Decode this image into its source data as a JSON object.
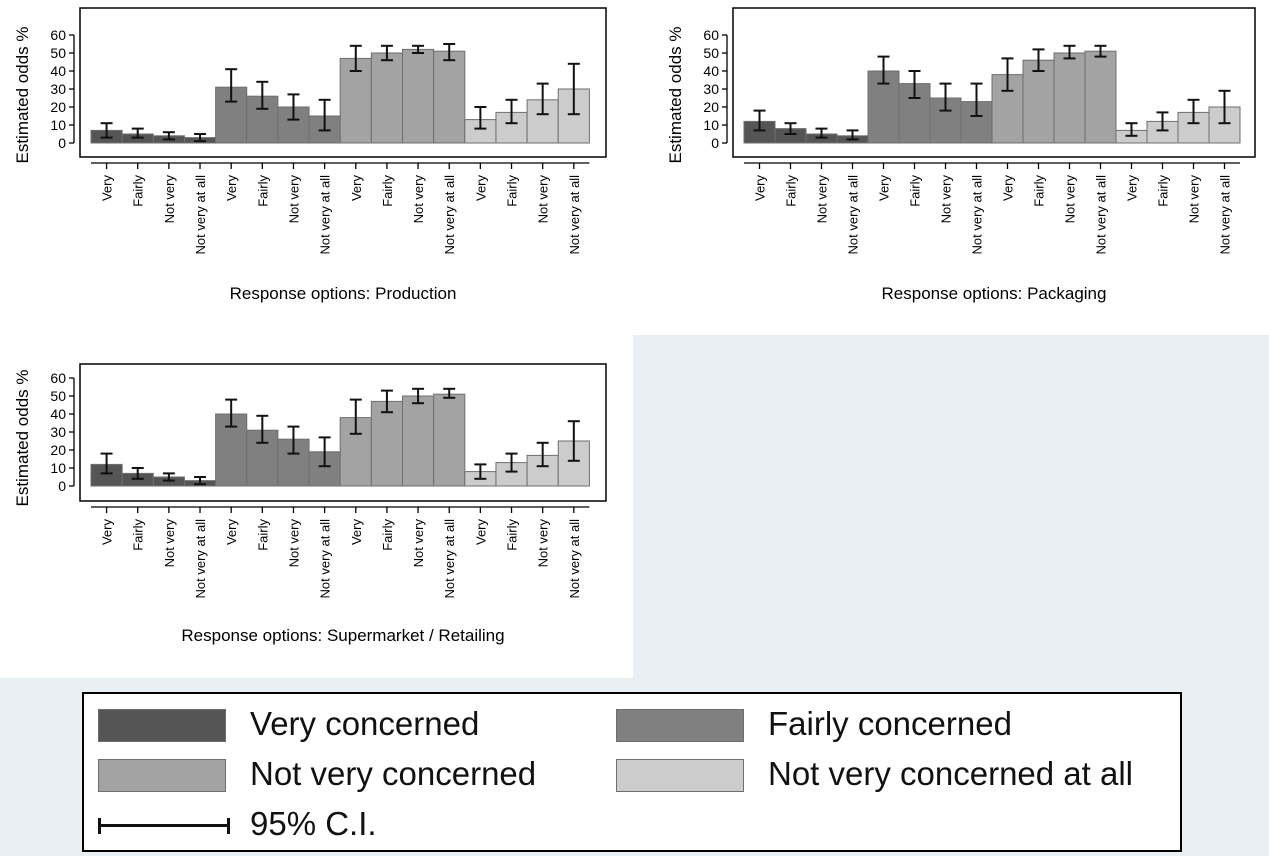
{
  "chart_data": [
    {
      "type": "bar",
      "xlabel": "Response options: Production",
      "ylabel": "Estimated odds %",
      "ylim": [
        0,
        60
      ],
      "yticks": [
        0,
        10,
        20,
        30,
        40,
        50,
        60
      ],
      "categories": [
        "Very",
        "Fairly",
        "Not very",
        "Not very at all"
      ],
      "series": [
        {
          "name": "Very concerned",
          "color": "#555555",
          "values": [
            7,
            5,
            4,
            3
          ],
          "ci_low": [
            3,
            3,
            2,
            1
          ],
          "ci_high": [
            11,
            8,
            6,
            5
          ]
        },
        {
          "name": "Fairly concerned",
          "color": "#808080",
          "values": [
            31,
            26,
            20,
            15
          ],
          "ci_low": [
            23,
            19,
            13,
            7
          ],
          "ci_high": [
            41,
            34,
            27,
            24
          ]
        },
        {
          "name": "Not very concerned",
          "color": "#a3a3a3",
          "values": [
            47,
            50,
            52,
            51
          ],
          "ci_low": [
            40,
            46,
            50,
            46
          ],
          "ci_high": [
            54,
            54,
            54,
            55
          ]
        },
        {
          "name": "Not very concerned at all",
          "color": "#cccccc",
          "values": [
            13,
            17,
            24,
            30
          ],
          "ci_low": [
            8,
            11,
            16,
            16
          ],
          "ci_high": [
            20,
            24,
            33,
            44
          ]
        }
      ]
    },
    {
      "type": "bar",
      "xlabel": "Response options: Packaging",
      "ylabel": "Estimated odds %",
      "ylim": [
        0,
        60
      ],
      "yticks": [
        0,
        10,
        20,
        30,
        40,
        50,
        60
      ],
      "categories": [
        "Very",
        "Fairly",
        "Not very",
        "Not very at all"
      ],
      "series": [
        {
          "name": "Very concerned",
          "color": "#555555",
          "values": [
            12,
            8,
            5,
            4
          ],
          "ci_low": [
            7,
            5,
            3,
            2
          ],
          "ci_high": [
            18,
            11,
            8,
            7
          ]
        },
        {
          "name": "Fairly concerned",
          "color": "#808080",
          "values": [
            40,
            33,
            25,
            23
          ],
          "ci_low": [
            33,
            25,
            18,
            15
          ],
          "ci_high": [
            48,
            40,
            33,
            33
          ]
        },
        {
          "name": "Not very concerned",
          "color": "#a3a3a3",
          "values": [
            38,
            46,
            50,
            51
          ],
          "ci_low": [
            29,
            40,
            47,
            48
          ],
          "ci_high": [
            47,
            52,
            54,
            54
          ]
        },
        {
          "name": "Not very concerned at all",
          "color": "#cccccc",
          "values": [
            7,
            12,
            17,
            20
          ],
          "ci_low": [
            4,
            7,
            11,
            11
          ],
          "ci_high": [
            11,
            17,
            24,
            29
          ]
        }
      ]
    },
    {
      "type": "bar",
      "xlabel": "Response options: Supermarket / Retailing",
      "ylabel": "Estimated odds %",
      "ylim": [
        0,
        60
      ],
      "yticks": [
        0,
        10,
        20,
        30,
        40,
        50,
        60
      ],
      "categories": [
        "Very",
        "Fairly",
        "Not very",
        "Not very at all"
      ],
      "series": [
        {
          "name": "Very concerned",
          "color": "#555555",
          "values": [
            12,
            7,
            5,
            3
          ],
          "ci_low": [
            7,
            4,
            3,
            1
          ],
          "ci_high": [
            18,
            10,
            7,
            5
          ]
        },
        {
          "name": "Fairly concerned",
          "color": "#808080",
          "values": [
            40,
            31,
            26,
            19
          ],
          "ci_low": [
            33,
            24,
            18,
            11
          ],
          "ci_high": [
            48,
            39,
            33,
            27
          ]
        },
        {
          "name": "Not very concerned",
          "color": "#a3a3a3",
          "values": [
            38,
            47,
            50,
            51
          ],
          "ci_low": [
            29,
            41,
            46,
            49
          ],
          "ci_high": [
            48,
            53,
            54,
            54
          ]
        },
        {
          "name": "Not very concerned at all",
          "color": "#cccccc",
          "values": [
            8,
            13,
            17,
            25
          ],
          "ci_low": [
            4,
            8,
            11,
            14
          ],
          "ci_high": [
            12,
            18,
            24,
            36
          ]
        }
      ]
    }
  ],
  "legend": {
    "items": [
      {
        "label": "Very concerned",
        "color": "#555555"
      },
      {
        "label": "Fairly concerned",
        "color": "#808080"
      },
      {
        "label": "Not very concerned",
        "color": "#a3a3a3"
      },
      {
        "label": "Not very concerned at all",
        "color": "#cccccc"
      }
    ],
    "ci_label": "95% C.I."
  }
}
